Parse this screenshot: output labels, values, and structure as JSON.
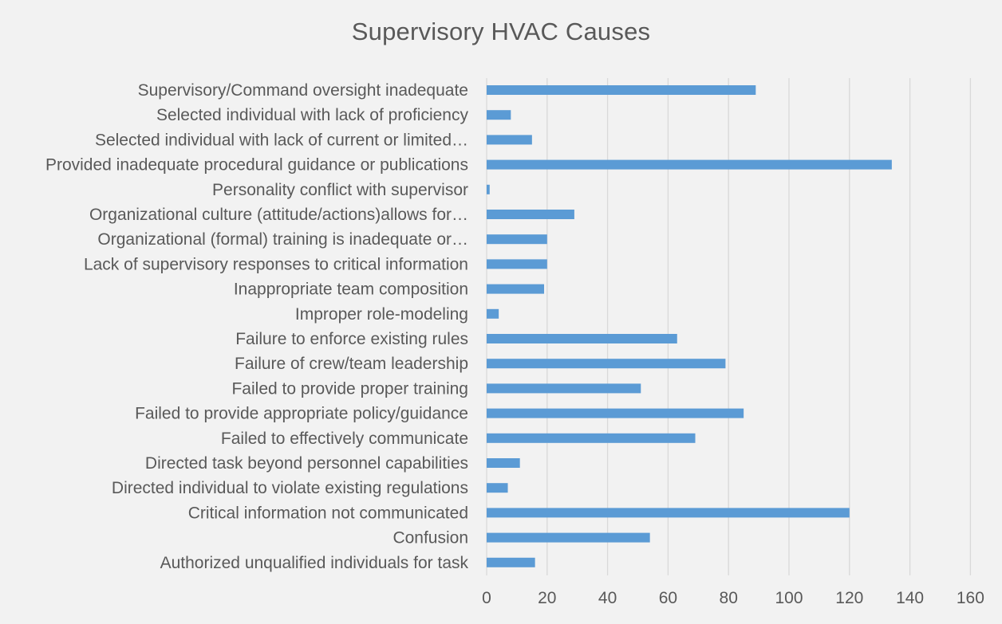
{
  "chart_data": {
    "type": "bar",
    "orientation": "horizontal",
    "title": "Supervisory  HVAC Causes",
    "xlabel": "",
    "ylabel": "",
    "xlim": [
      0,
      160
    ],
    "ticks": [
      "0",
      "20",
      "40",
      "60",
      "80",
      "100",
      "120",
      "140",
      "160"
    ],
    "tick_values": [
      0,
      20,
      40,
      60,
      80,
      100,
      120,
      140,
      160
    ],
    "grid": "vertical",
    "legend": "none",
    "bar_color": "#5b9bd5",
    "grid_color": "#d9d9d9",
    "categories": [
      "Supervisory/Command oversight inadequate",
      "Selected individual with lack of proficiency",
      "Selected individual with lack of current or limited…",
      "Provided inadequate procedural guidance or publications",
      "Personality conflict with supervisor",
      "Organizational culture (attitude/actions)allows for…",
      "Organizational (formal) training is inadequate or…",
      "Lack of supervisory responses to critical information",
      "Inappropriate team composition",
      "Improper role-modeling",
      "Failure to enforce existing rules",
      "Failure of crew/team leadership",
      "Failed to provide proper training",
      "Failed to provide appropriate policy/guidance",
      "Failed to effectively communicate",
      "Directed task beyond personnel capabilities",
      "Directed individual to violate existing regulations",
      "Critical information not communicated",
      "Confusion",
      "Authorized unqualified individuals for task"
    ],
    "values": [
      89,
      8,
      15,
      134,
      1,
      29,
      20,
      20,
      19,
      4,
      63,
      79,
      51,
      85,
      69,
      11,
      7,
      120,
      54,
      16
    ]
  }
}
